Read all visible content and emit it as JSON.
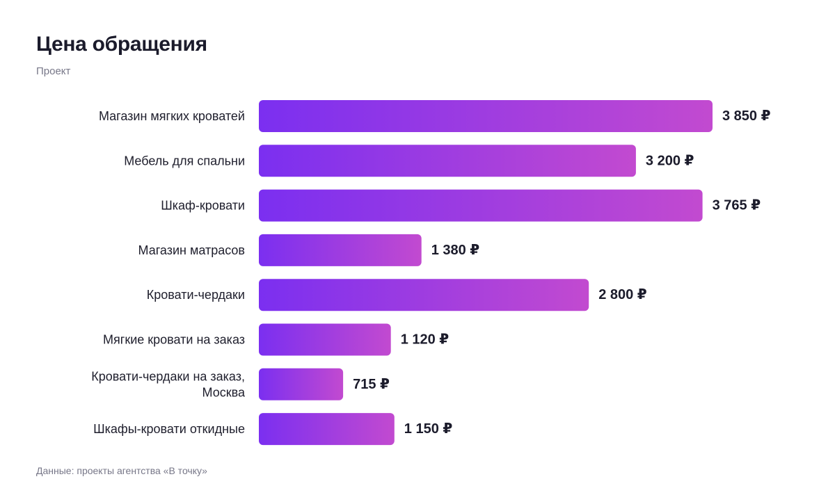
{
  "chart_data": {
    "type": "bar",
    "orientation": "horizontal",
    "title": "Цена обращения",
    "subtitle": "Проект",
    "categories": [
      "Магазин мягких кроватей",
      "Мебель для спальни",
      "Шкаф-кровати",
      "Магазин матрасов",
      "Кровати-чердаки",
      "Мягкие кровати на заказ",
      "Кровати-чердаки на заказ, Москва",
      "Шкафы-кровати откидные"
    ],
    "category_lines": [
      [
        "Магазин мягких кроватей"
      ],
      [
        "Мебель для спальни"
      ],
      [
        "Шкаф-кровати"
      ],
      [
        "Магазин матрасов"
      ],
      [
        "Кровати-чердаки"
      ],
      [
        "Мягкие кровати на заказ"
      ],
      [
        "Кровати-чердаки на заказ,",
        "Москва"
      ],
      [
        "Шкафы-кровати откидные"
      ]
    ],
    "values": [
      3850,
      3200,
      3765,
      1380,
      2800,
      1120,
      715,
      1150
    ],
    "value_labels": [
      "3 850 ₽",
      "3 200 ₽",
      "3 765 ₽",
      "1 380 ₽",
      "2 800 ₽",
      "1 120 ₽",
      "715 ₽",
      "1 150 ₽"
    ],
    "xlabel": "",
    "ylabel": "",
    "xlim": [
      0,
      3850
    ],
    "grid": false,
    "legend": "none",
    "colors": {
      "bar_start": "#7b2ff0",
      "bar_end": "#c24ad0"
    }
  },
  "footer": {
    "source": "Данные: проекты агентства «В точку»"
  }
}
